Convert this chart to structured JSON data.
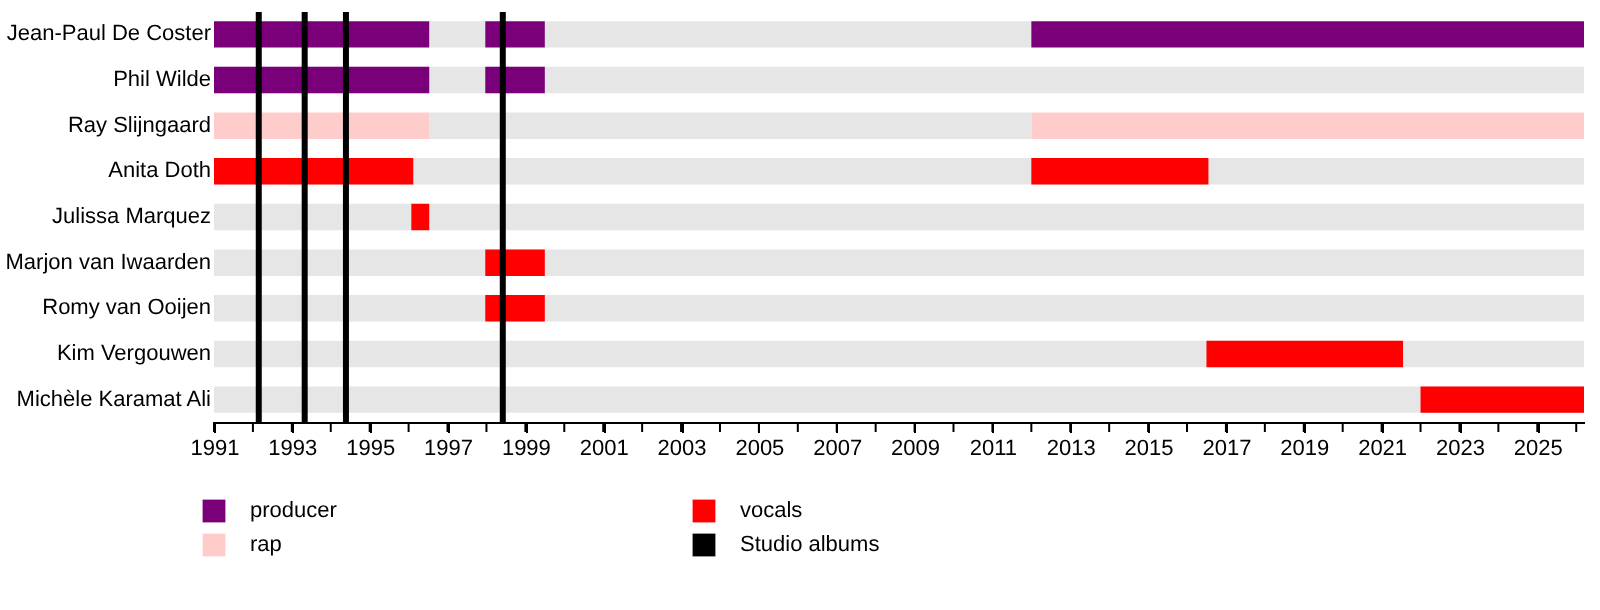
{
  "chart_data": {
    "type": "bar",
    "orientation": "horizontal",
    "categories": [
      "Jean-Paul De Coster",
      "Phil Wilde",
      "Ray Slijngaard",
      "Anita Doth",
      "Julissa Marquez",
      "Marjon van Iwaarden",
      "Romy van Ooijen",
      "Kim Vergouwen",
      "Michèle Karamat Ali"
    ],
    "series": [
      {
        "color": "#e6e6e6",
        "base": [
          null,
          1991,
          null,
          1991,
          1991,
          1991,
          1991,
          1991,
          1991
        ],
        "values": [
          null,
          35.2,
          null,
          35.2,
          35.2,
          35.2,
          35.2,
          35.2,
          35.2
        ]
      },
      {
        "color": "#e6e6e6",
        "base": [
          1996.53,
          null,
          1996.53,
          null,
          null,
          null,
          null,
          null,
          null
        ],
        "values": [
          1.44,
          null,
          15.47,
          null,
          null,
          null,
          null,
          null,
          null
        ]
      },
      {
        "color": "#e6e6e6",
        "base": [
          1999.5,
          null,
          null,
          null,
          null,
          null,
          null,
          null,
          null
        ],
        "values": [
          12.5,
          null,
          null,
          null,
          null,
          null,
          null,
          null,
          null
        ]
      },
      {
        "name": "producer",
        "color": "#7a007a",
        "base": [
          1991,
          1991,
          null,
          null,
          null,
          null,
          null,
          null,
          null
        ],
        "values": [
          5.53,
          5.53,
          null,
          null,
          null,
          null,
          null,
          null,
          null
        ]
      },
      {
        "color": "#7a007a",
        "base": [
          1997.97,
          1997.97,
          null,
          null,
          null,
          null,
          null,
          null,
          null
        ],
        "values": [
          1.53,
          1.53,
          null,
          null,
          null,
          null,
          null,
          null,
          null
        ]
      },
      {
        "color": "#7a007a",
        "base": [
          2012.0,
          null,
          null,
          null,
          null,
          null,
          null,
          null,
          null
        ],
        "values": [
          14.2,
          null,
          null,
          null,
          null,
          null,
          null,
          null,
          null
        ]
      },
      {
        "name": "rap",
        "color": "#ffcccc",
        "base": [
          null,
          null,
          1991,
          null,
          null,
          null,
          null,
          null,
          null
        ],
        "values": [
          null,
          null,
          5.53,
          null,
          null,
          null,
          null,
          null,
          null
        ]
      },
      {
        "color": "#ffcccc",
        "base": [
          null,
          null,
          2012.0,
          null,
          null,
          null,
          null,
          null,
          null
        ],
        "values": [
          null,
          null,
          14.2,
          null,
          null,
          null,
          null,
          null,
          null
        ]
      },
      {
        "name": "vocals",
        "color": "#ff0000",
        "base": [
          null,
          null,
          null,
          1991,
          1996.07,
          1997.97,
          1997.97,
          2016.5,
          2022.0
        ],
        "values": [
          null,
          null,
          null,
          5.12,
          0.46,
          1.53,
          1.53,
          5.05,
          4.2
        ]
      },
      {
        "color": "#ff0000",
        "base": [
          null,
          null,
          null,
          2012.0,
          null,
          null,
          null,
          null,
          null
        ],
        "values": [
          null,
          null,
          null,
          4.55,
          null,
          null,
          null,
          null,
          null
        ]
      }
    ],
    "ref_lines": [
      {
        "axis": "x",
        "value": 1992.15,
        "label": "Studio albums",
        "color": "#000000"
      },
      {
        "axis": "x",
        "value": 1993.33,
        "color": "#000000"
      },
      {
        "axis": "x",
        "value": 1994.39,
        "color": "#000000"
      },
      {
        "axis": "x",
        "value": 1998.42,
        "color": "#000000"
      }
    ],
    "xlim": [
      1991,
      2026.2
    ],
    "xticks": [
      1991,
      {
        "value": 1992,
        "label": null
      },
      1993,
      {
        "value": 1994,
        "label": null
      },
      1995,
      {
        "value": 1996,
        "label": null
      },
      1997,
      {
        "value": 1998,
        "label": null
      },
      1999,
      {
        "value": 2000,
        "label": null
      },
      2001,
      {
        "value": 2002,
        "label": null
      },
      2003,
      {
        "value": 2004,
        "label": null
      },
      2005,
      {
        "value": 2006,
        "label": null
      },
      2007,
      {
        "value": 2008,
        "label": null
      },
      2009,
      {
        "value": 2010,
        "label": null
      },
      2011,
      {
        "value": 2012,
        "label": null
      },
      2013,
      {
        "value": 2014,
        "label": null
      },
      2015,
      {
        "value": 2016,
        "label": null
      },
      2017,
      {
        "value": 2018,
        "label": null
      },
      2019,
      {
        "value": 2020,
        "label": null
      },
      2021,
      {
        "value": 2022,
        "label": null
      },
      2023,
      {
        "value": 2024,
        "label": null
      },
      2025,
      {
        "value": 2026,
        "label": null
      }
    ],
    "grid": false,
    "legend": "bottom"
  }
}
